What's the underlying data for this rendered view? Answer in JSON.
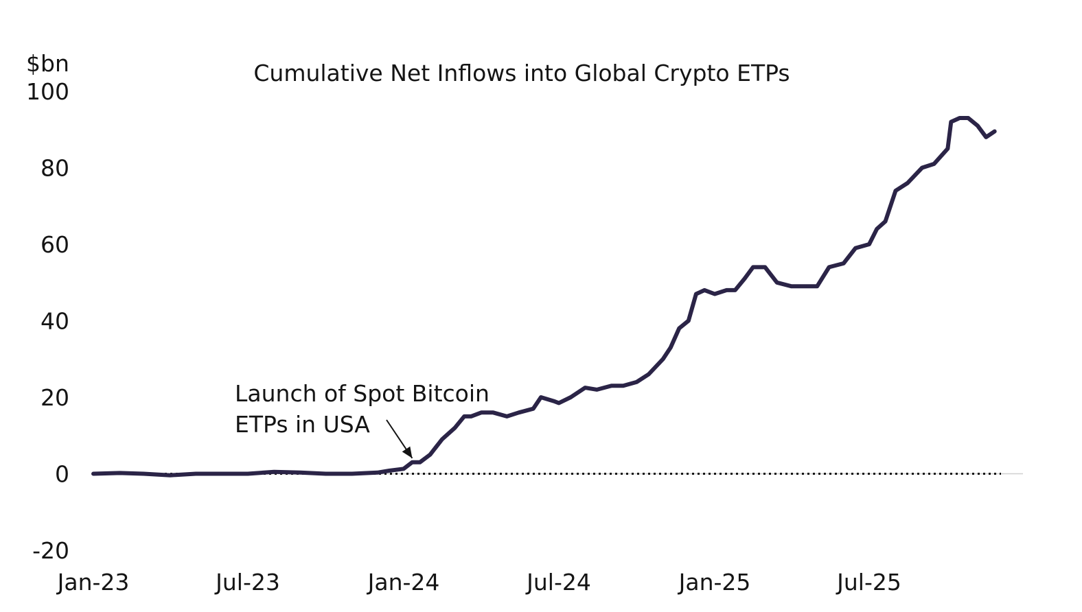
{
  "chart_data": {
    "type": "line",
    "title": "Cumulative Net Inflows into Global Crypto ETPs",
    "ylabel": "$bn",
    "xlabel": "",
    "ylim": [
      -20,
      100
    ],
    "yticks": [
      "100",
      "80",
      "60",
      "40",
      "20",
      "0",
      "-20"
    ],
    "ytick_values": [
      100,
      80,
      60,
      40,
      20,
      0,
      -20
    ],
    "xticks": [
      "Jan-23",
      "Jul-23",
      "Jan-24",
      "Jul-24",
      "Jan-25",
      "Jul-25"
    ],
    "xtick_dates": [
      "2023-01-01",
      "2023-07-01",
      "2024-01-01",
      "2024-07-01",
      "2025-01-01",
      "2025-07-01"
    ],
    "xlim": [
      "2022-12-01",
      "2025-12-31"
    ],
    "grid": false,
    "legend": "none",
    "zero_line": "dotted",
    "line_color": "#2b2447",
    "annotation": {
      "lines": [
        "Launch of Spot Bitcoin",
        "ETPs in USA"
      ],
      "date": "2024-01-11",
      "value": 3
    },
    "series": [
      {
        "x": [
          "2023-01-01",
          "2023-02-01",
          "2023-03-01",
          "2023-04-01",
          "2023-05-01",
          "2023-06-01",
          "2023-07-01",
          "2023-08-01",
          "2023-09-01",
          "2023-10-01",
          "2023-11-01",
          "2023-12-01",
          "2023-12-15",
          "2024-01-01",
          "2024-01-11",
          "2024-01-20",
          "2024-02-01",
          "2024-02-15",
          "2024-03-01",
          "2024-03-12",
          "2024-03-20",
          "2024-04-01",
          "2024-04-15",
          "2024-05-01",
          "2024-05-15",
          "2024-06-01",
          "2024-06-10",
          "2024-06-25",
          "2024-07-01",
          "2024-07-15",
          "2024-08-01",
          "2024-08-15",
          "2024-09-01",
          "2024-09-15",
          "2024-10-01",
          "2024-10-15",
          "2024-11-01",
          "2024-11-10",
          "2024-11-20",
          "2024-12-01",
          "2024-12-10",
          "2024-12-20",
          "2025-01-01",
          "2025-01-15",
          "2025-01-25",
          "2025-02-05",
          "2025-02-15",
          "2025-03-01",
          "2025-03-15",
          "2025-04-01",
          "2025-04-10",
          "2025-04-20",
          "2025-05-01",
          "2025-05-15",
          "2025-06-01",
          "2025-06-15",
          "2025-07-01",
          "2025-07-10",
          "2025-07-20",
          "2025-08-01",
          "2025-08-15",
          "2025-09-01",
          "2025-09-15",
          "2025-10-01",
          "2025-10-05",
          "2025-10-15",
          "2025-10-25",
          "2025-11-05",
          "2025-11-15",
          "2025-11-25"
        ],
        "values": [
          0,
          0.2,
          0,
          -0.4,
          0,
          0,
          0,
          0.5,
          0.3,
          0,
          0,
          0.3,
          0.8,
          1.3,
          3,
          3,
          5,
          9,
          12,
          15,
          15,
          16,
          16,
          15,
          16,
          17,
          20,
          19,
          18.5,
          20,
          22.5,
          22,
          23,
          23,
          24,
          26,
          30,
          33,
          38,
          40,
          47,
          48,
          47,
          48,
          48,
          51,
          54,
          54,
          50,
          49,
          49,
          49,
          49,
          54,
          55,
          59,
          60,
          64,
          66,
          74,
          76,
          80,
          81,
          85,
          92,
          93,
          93,
          91,
          88,
          89.5
        ]
      }
    ]
  }
}
